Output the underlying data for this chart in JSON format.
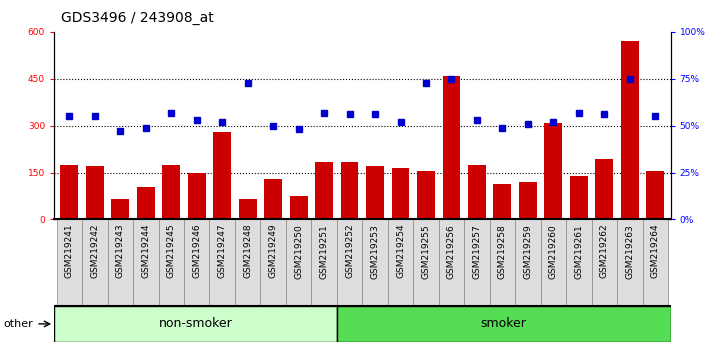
{
  "title": "GDS3496 / 243908_at",
  "categories": [
    "GSM219241",
    "GSM219242",
    "GSM219243",
    "GSM219244",
    "GSM219245",
    "GSM219246",
    "GSM219247",
    "GSM219248",
    "GSM219249",
    "GSM219250",
    "GSM219251",
    "GSM219252",
    "GSM219253",
    "GSM219254",
    "GSM219255",
    "GSM219256",
    "GSM219257",
    "GSM219258",
    "GSM219259",
    "GSM219260",
    "GSM219261",
    "GSM219262",
    "GSM219263",
    "GSM219264"
  ],
  "counts": [
    175,
    170,
    65,
    105,
    175,
    150,
    280,
    65,
    130,
    75,
    185,
    185,
    170,
    165,
    155,
    460,
    175,
    115,
    120,
    310,
    140,
    195,
    570,
    155
  ],
  "percentile_ranks": [
    55,
    55,
    47,
    49,
    57,
    53,
    52,
    73,
    50,
    48,
    57,
    56,
    56,
    52,
    73,
    75,
    53,
    49,
    51,
    52,
    57,
    56,
    75,
    55
  ],
  "group_labels": [
    "non-smoker",
    "smoker"
  ],
  "nonsmoker_count": 11,
  "smoker_count": 13,
  "group_colors": [
    "#ccffcc",
    "#55dd55"
  ],
  "bar_color": "#cc0000",
  "dot_color": "#0000cc",
  "ylim_left": [
    0,
    600
  ],
  "ylim_right": [
    0,
    100
  ],
  "yticks_left": [
    0,
    150,
    300,
    450,
    600
  ],
  "yticks_right": [
    0,
    25,
    50,
    75,
    100
  ],
  "dotted_lines": [
    150,
    300,
    450
  ],
  "background_color": "#ffffff",
  "title_fontsize": 10,
  "tick_fontsize": 6.5,
  "legend_fontsize": 8,
  "group_fontsize": 9
}
